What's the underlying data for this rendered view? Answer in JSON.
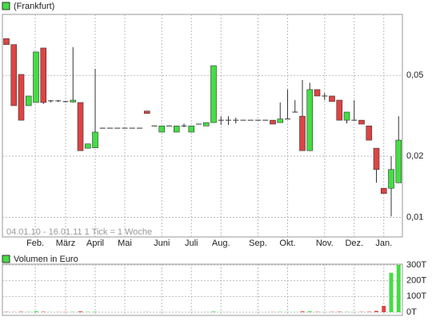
{
  "chart_data": [
    {
      "type": "candlestick",
      "title": "(Frankfurt)",
      "annotation": "04.01.10 - 16.01.11   1 Tick = 1 Woche",
      "categories": [
        null,
        null,
        null,
        null,
        null,
        null,
        null,
        null,
        null,
        null,
        null,
        null,
        null,
        null,
        null,
        null,
        null,
        null,
        null,
        null,
        null,
        null,
        null,
        null,
        null,
        null,
        null,
        null,
        null,
        null,
        null,
        null,
        null,
        null,
        null,
        null,
        null,
        null,
        null,
        null,
        null,
        null,
        null,
        null,
        null,
        null,
        null,
        null,
        null,
        null,
        null,
        null,
        null,
        null
      ],
      "open": [
        0.076,
        0.071,
        0.0506,
        0.0355,
        0.0368,
        0.0683,
        0.037,
        0.0375,
        0.0372,
        0.037,
        0.0368,
        0.0219,
        0.022,
        0.0275,
        0.0275,
        0.0275,
        0.0275,
        0.0275,
        0.0275,
        0.0334,
        0.0282,
        0.0263,
        0.0282,
        0.0263,
        0.0282,
        0.0263,
        0.0288,
        0.0282,
        0.0293,
        0.0301,
        0.0301,
        0.0301,
        0.0301,
        0.0301,
        0.0301,
        0.0301,
        0.0301,
        0.0293,
        0.0305,
        0.033,
        0.0315,
        0.0213,
        0.0426,
        0.0396,
        0.0396,
        0.0378,
        0.0301,
        0.0301,
        0.0301,
        0.0282,
        0.0219,
        0.0139,
        0.0139,
        0.0148
      ],
      "high": [
        0.076,
        0.071,
        0.0506,
        0.0396,
        0.0653,
        0.0683,
        0.0378,
        0.0378,
        0.0375,
        0.069,
        0.0368,
        0.023,
        0.054,
        0.0275,
        0.0275,
        0.0275,
        0.0275,
        0.0275,
        0.0275,
        0.0334,
        0.0282,
        0.0282,
        0.0282,
        0.0282,
        0.029,
        0.0282,
        0.0288,
        0.0293,
        0.0559,
        0.0315,
        0.0315,
        0.031,
        0.0301,
        0.0301,
        0.0301,
        0.0301,
        0.0301,
        0.0368,
        0.0426,
        0.0378,
        0.0475,
        0.046,
        0.0426,
        0.041,
        0.0396,
        0.0378,
        0.033,
        0.0378,
        0.0301,
        0.0282,
        0.0219,
        0.0139,
        0.02,
        0.0315
      ],
      "low": [
        0.071,
        0.0355,
        0.0301,
        0.0355,
        0.0368,
        0.0362,
        0.0368,
        0.037,
        0.0368,
        0.0368,
        0.0213,
        0.0219,
        0.022,
        0.0275,
        0.0275,
        0.0275,
        0.0275,
        0.0275,
        0.0275,
        0.0325,
        0.0282,
        0.0263,
        0.0282,
        0.0263,
        0.0278,
        0.0263,
        0.0288,
        0.0282,
        0.0293,
        0.0285,
        0.0285,
        0.029,
        0.0301,
        0.0301,
        0.0301,
        0.0301,
        0.0288,
        0.0293,
        0.0305,
        0.033,
        0.0213,
        0.0213,
        0.0396,
        0.0378,
        0.0372,
        0.0301,
        0.029,
        0.0301,
        0.0288,
        0.024,
        0.0148,
        0.0131,
        0.0101,
        0.0148
      ],
      "close": [
        0.071,
        0.0355,
        0.0301,
        0.0396,
        0.0653,
        0.0368,
        0.0375,
        0.0372,
        0.037,
        0.0378,
        0.0213,
        0.023,
        0.0263,
        0.0275,
        0.0275,
        0.0275,
        0.0275,
        0.0275,
        0.0275,
        0.0325,
        0.0282,
        0.0282,
        0.0282,
        0.0282,
        0.0282,
        0.0282,
        0.0288,
        0.0293,
        0.0559,
        0.0301,
        0.0301,
        0.0301,
        0.0301,
        0.0301,
        0.0301,
        0.0301,
        0.0288,
        0.0305,
        0.0305,
        0.033,
        0.0213,
        0.0426,
        0.0396,
        0.0396,
        0.0372,
        0.0301,
        0.033,
        0.0301,
        0.0288,
        0.024,
        0.0172,
        0.0131,
        0.0172,
        0.024
      ],
      "up_color": "#44dd44",
      "down_color": "#dd4444",
      "log_scale": true,
      "ylim": [
        0.008,
        0.1
      ],
      "yticks": [
        {
          "value": 0.01,
          "label": "0,01"
        },
        {
          "value": 0.02,
          "label": "0,02"
        },
        {
          "value": 0.05,
          "label": "0,05"
        }
      ],
      "xticks": [
        {
          "value": 3.9,
          "label": "Feb."
        },
        {
          "value": 8,
          "label": "März"
        },
        {
          "value": 12,
          "label": "April"
        },
        {
          "value": 16,
          "label": "Mai"
        },
        {
          "value": 21,
          "label": "Juni"
        },
        {
          "value": 25,
          "label": "Juli"
        },
        {
          "value": 29,
          "label": "Aug."
        },
        {
          "value": 34,
          "label": "Sep."
        },
        {
          "value": 38,
          "label": "Okt."
        },
        {
          "value": 43,
          "label": "Nov."
        },
        {
          "value": 47,
          "label": "Dez."
        },
        {
          "value": 51,
          "label": "Jan."
        }
      ],
      "grid": true
    },
    {
      "type": "bar",
      "title": "Volumen in Euro",
      "values": [
        2000,
        1000,
        3000,
        2000,
        6000,
        3000,
        1000,
        1000,
        1000,
        2000,
        5000,
        2000,
        3000,
        0,
        0,
        0,
        0,
        0,
        0,
        1000,
        0,
        1000,
        0,
        1000,
        0,
        1000,
        0,
        1000,
        4000,
        1000,
        1000,
        0,
        0,
        0,
        0,
        0,
        1000,
        2000,
        1000,
        1000,
        5000,
        6000,
        2000,
        1000,
        2000,
        3000,
        2000,
        1000,
        2000,
        3000,
        8000,
        40000,
        250000,
        300000
      ],
      "ylim": [
        0,
        300000
      ],
      "yticks": [
        {
          "value": 0,
          "label": "0T"
        },
        {
          "value": 100000,
          "label": "100T"
        },
        {
          "value": 200000,
          "label": "200T"
        },
        {
          "value": 300000,
          "label": "300T"
        }
      ],
      "grid": true
    }
  ]
}
